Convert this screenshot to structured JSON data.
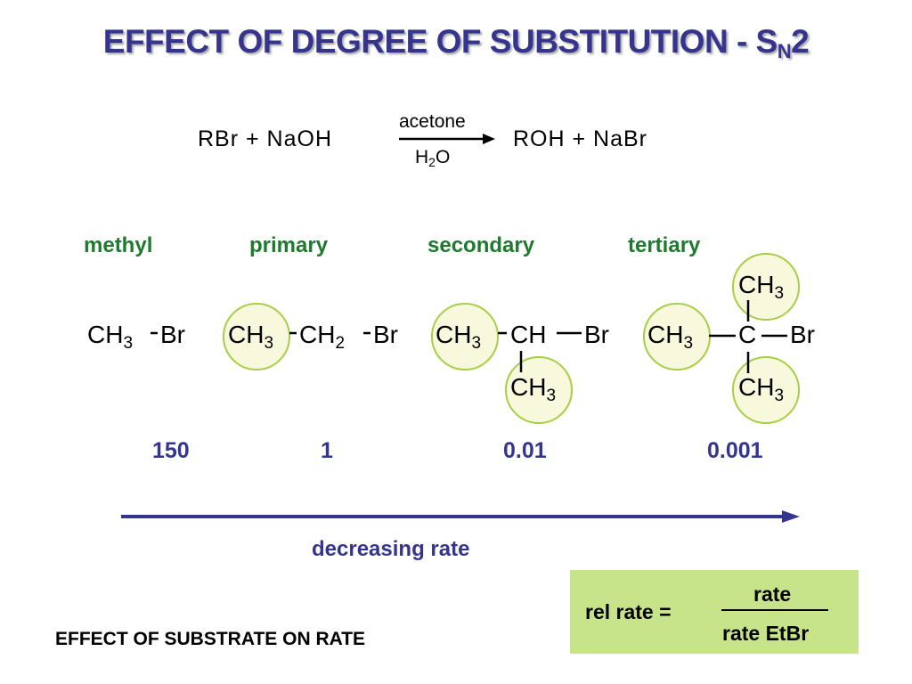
{
  "title": {
    "main": "EFFECT OF DEGREE OF SUBSTITUTION  -  S",
    "subscript": "N",
    "suffix": "2"
  },
  "reaction": {
    "reactants": "RBr + NaOH",
    "above_arrow": "acetone",
    "below_arrow_pre": "H",
    "below_arrow_sub": "2",
    "below_arrow_post": "O",
    "products": "ROH + NaBr"
  },
  "classes": [
    "methyl",
    "primary",
    "secondary",
    "tertiary"
  ],
  "structures": {
    "ch": "CH",
    "three": "3",
    "two": "2",
    "br": "Br",
    "c": "C"
  },
  "rates": [
    "150",
    "1",
    "0.01",
    "0.001"
  ],
  "arrow_label": "decreasing rate",
  "footer": "EFFECT OF SUBSTRATE ON RATE",
  "formula": {
    "lhs": "rel rate  =",
    "numerator": "rate",
    "denominator": "rate EtBr"
  },
  "colors": {
    "title": "#35358f",
    "class_label": "#1e7a2c",
    "rate_value": "#35358f",
    "circle_fill": "#f7f8dc",
    "circle_border": "#a6cf45",
    "formula_box": "#c8e48a"
  }
}
